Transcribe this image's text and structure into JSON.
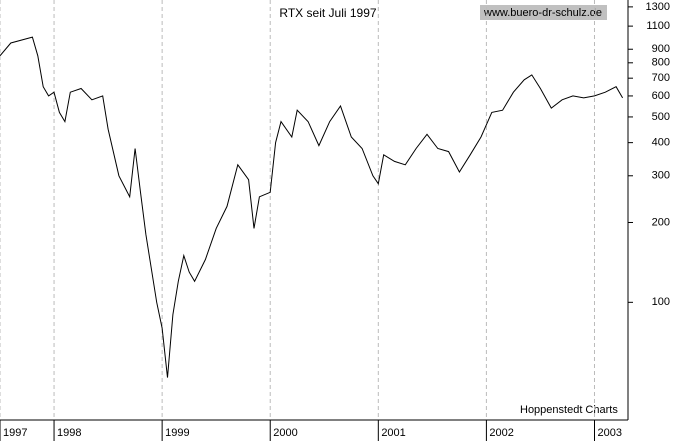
{
  "chart_data": {
    "type": "line",
    "title": "RTX seit Juli 1997",
    "watermark": "www.buero-dr-schulz.de",
    "source": "Hoppenstedt Charts",
    "log_scale": true,
    "grid": "x",
    "xlim": [
      1997.5,
      2003.31
    ],
    "xticks": [
      {
        "value": 1997.5,
        "label": "1997"
      },
      1998,
      1999,
      2000,
      2001,
      2002,
      2003
    ],
    "ylim": [
      36,
      1380
    ],
    "yticks": [
      100,
      200,
      300,
      400,
      500,
      600,
      700,
      800,
      900,
      1100,
      1300
    ],
    "color": "#000000",
    "x": [
      1997.5,
      1997.6,
      1997.8,
      1997.85,
      1997.9,
      1997.95,
      1998.0,
      1998.05,
      1998.1,
      1998.15,
      1998.25,
      1998.35,
      1998.45,
      1998.5,
      1998.6,
      1998.7,
      1998.75,
      1998.8,
      1998.85,
      1998.95,
      1999.0,
      1999.05,
      1999.1,
      1999.15,
      1999.2,
      1999.25,
      1999.3,
      1999.4,
      1999.5,
      1999.6,
      1999.7,
      1999.8,
      1999.85,
      1999.9,
      2000.0,
      2000.05,
      2000.1,
      2000.2,
      2000.25,
      2000.35,
      2000.45,
      2000.55,
      2000.65,
      2000.75,
      2000.85,
      2000.95,
      2001.0,
      2001.05,
      2001.15,
      2001.25,
      2001.35,
      2001.45,
      2001.55,
      2001.65,
      2001.75,
      2001.85,
      2001.95,
      2002.05,
      2002.15,
      2002.25,
      2002.35,
      2002.42,
      2002.5,
      2002.6,
      2002.7,
      2002.8,
      2002.9,
      2003.0,
      2003.1,
      2003.2,
      2003.26
    ],
    "values": [
      850,
      950,
      1000,
      850,
      650,
      600,
      620,
      520,
      480,
      620,
      640,
      580,
      600,
      450,
      300,
      250,
      380,
      260,
      180,
      100,
      80,
      52,
      90,
      120,
      150,
      130,
      120,
      145,
      190,
      230,
      330,
      290,
      190,
      250,
      260,
      400,
      480,
      420,
      530,
      480,
      390,
      480,
      550,
      420,
      380,
      300,
      280,
      360,
      340,
      330,
      380,
      430,
      380,
      370,
      310,
      360,
      420,
      520,
      530,
      620,
      690,
      720,
      640,
      540,
      580,
      600,
      590,
      600,
      620,
      650,
      590
    ]
  }
}
